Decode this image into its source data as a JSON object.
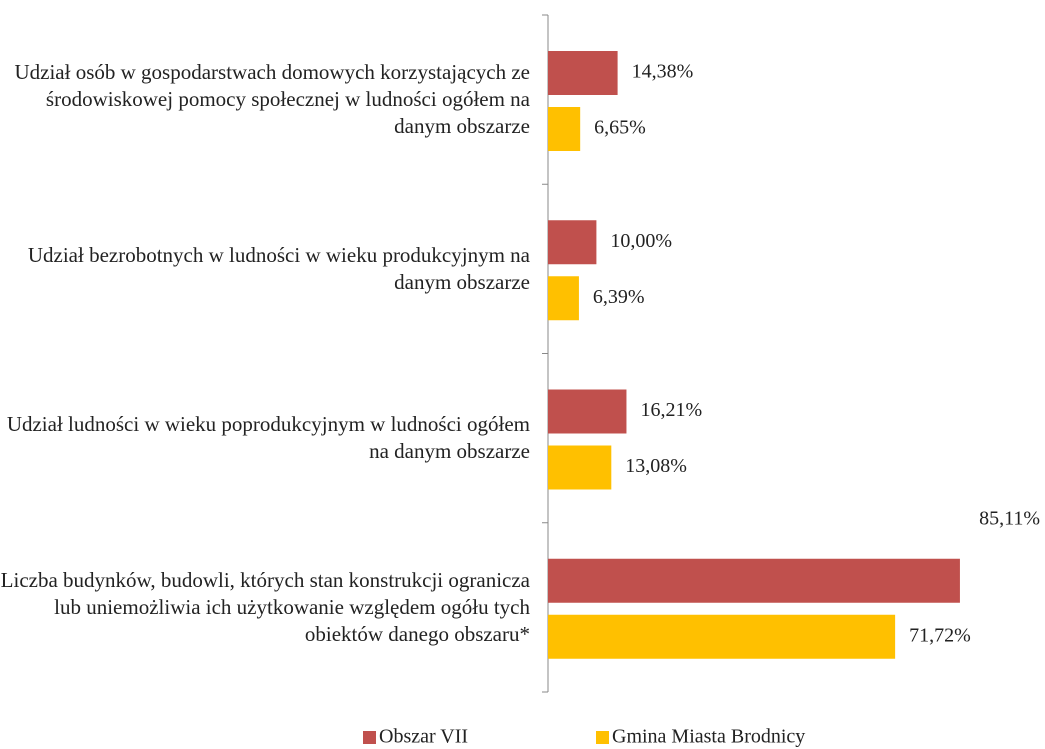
{
  "chart_data": {
    "type": "bar",
    "orientation": "horizontal",
    "categories": [
      "Udział osób w gospodarstwach domowych korzystających ze środowiskowej pomocy społecznej w ludności ogółem na danym obszarze",
      "Udział bezrobotnych w ludności w wieku produkcyjnym na danym obszarze",
      "Udział ludności w wieku poprodukcyjnym w ludności ogółem na danym obszarze",
      "Liczba budynków, budowli, których stan konstrukcji ogranicza lub uniemożliwia ich użytkowanie względem ogółu tych obiektów danego obszaru*"
    ],
    "series": [
      {
        "name": "Obszar VII",
        "color": "#c0504d",
        "values": [
          14.38,
          10.0,
          16.21,
          85.11
        ],
        "value_labels": [
          "14,38%",
          "10,00%",
          "16,21%",
          "85,11%"
        ]
      },
      {
        "name": "Gmina Miasta Brodnicy",
        "color": "#ffc000",
        "values": [
          6.65,
          6.39,
          13.08,
          71.72
        ],
        "value_labels": [
          "6,65%",
          "6,39%",
          "13,08%",
          "71,72%"
        ]
      }
    ],
    "xlim": [
      0,
      100
    ],
    "legend": "bottom"
  }
}
